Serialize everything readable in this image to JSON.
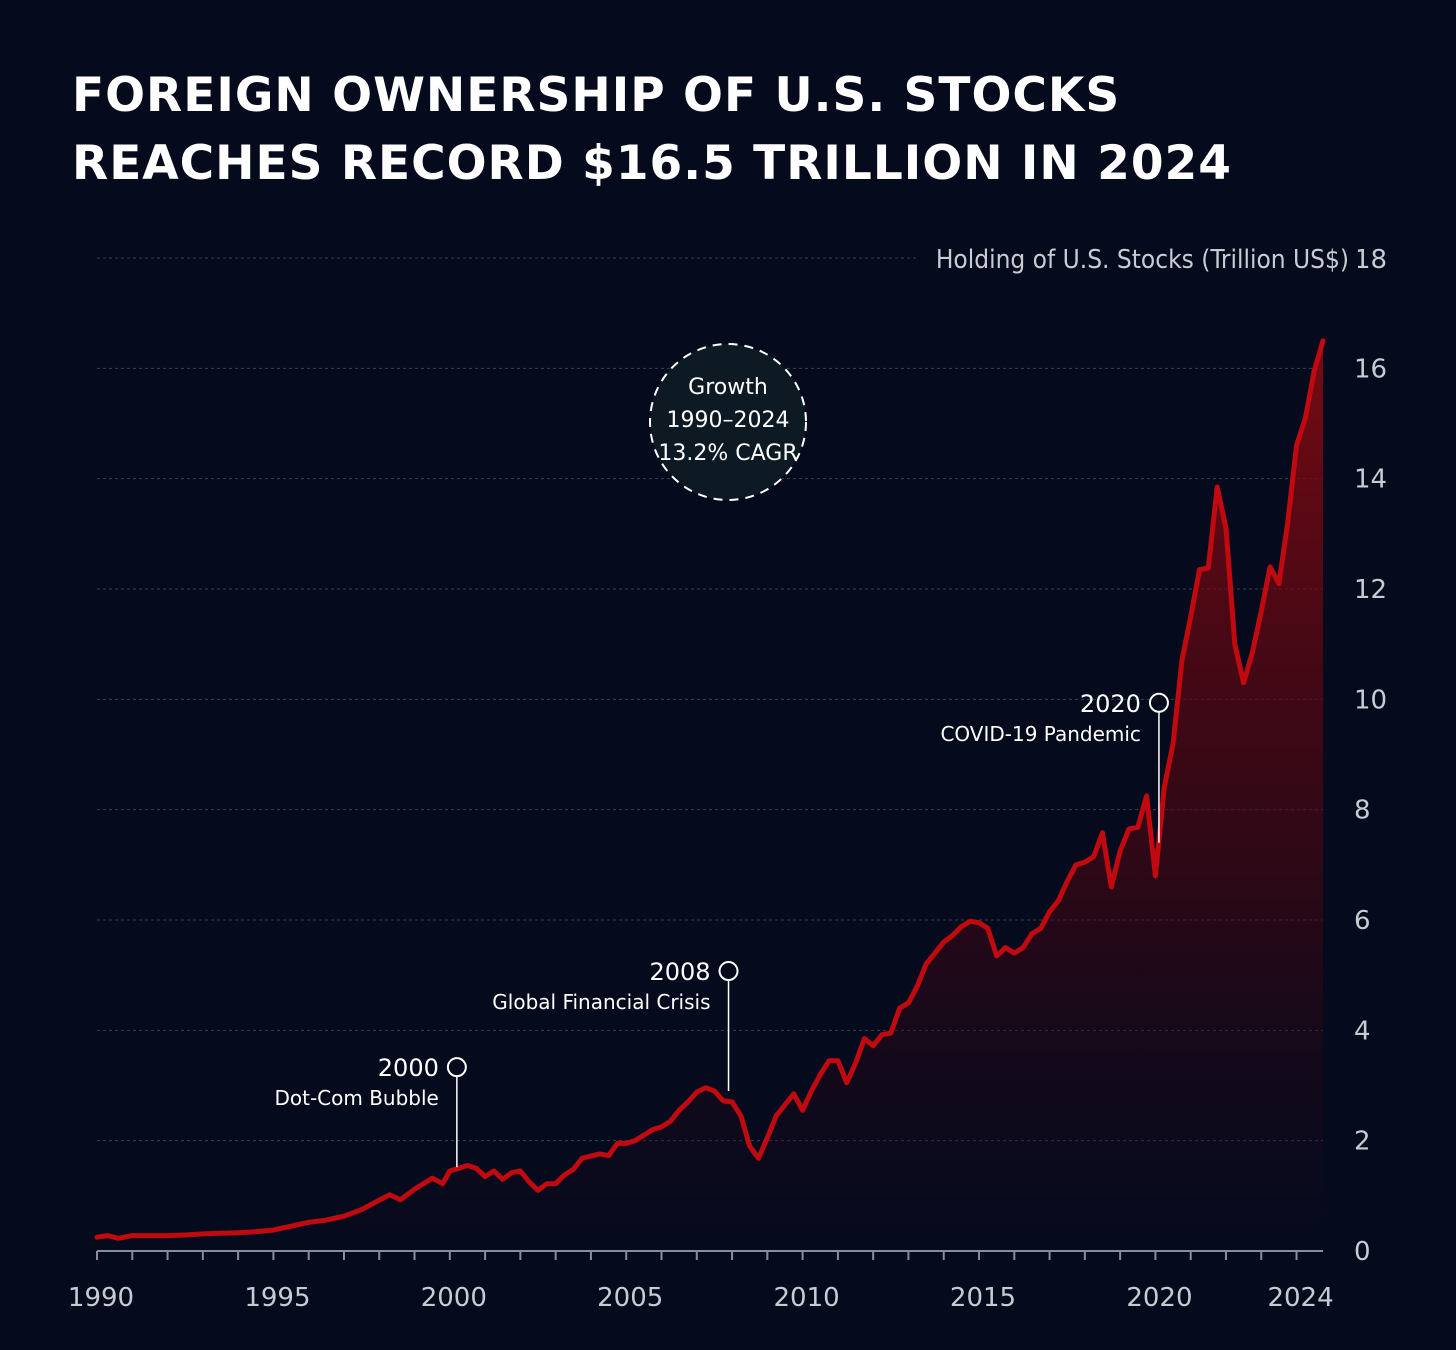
{
  "title_lines": [
    "FOREIGN OWNERSHIP OF U.S. STOCKS",
    "REACHES RECORD $16.5 TRILLION IN 2024"
  ],
  "colors": {
    "background": "#060a1d",
    "line": "#c00a0f",
    "grid": "#3a3f55",
    "text": "#ffffff",
    "axis_text": "#c9cbd3"
  },
  "badge": {
    "lines": [
      "Growth",
      "1990–2024",
      "13.2% CAGR"
    ]
  },
  "chart_data": {
    "type": "area",
    "ylabel": "Holding of U.S. Stocks (Trillion US$)",
    "xlim": [
      1990,
      2024.75
    ],
    "ylim": [
      0,
      18
    ],
    "y_axis_position": "right",
    "grid": true,
    "x_ticks": [
      1990,
      1995,
      2000,
      2005,
      2010,
      2015,
      2020,
      2024
    ],
    "y_ticks": [
      0,
      2,
      4,
      6,
      8,
      10,
      12,
      14,
      16,
      18
    ],
    "series": [
      {
        "x": [
          1990,
          1990.3,
          1990.6,
          1991,
          1991.5,
          1992,
          1992.5,
          1993,
          1993.5,
          1994,
          1994.5,
          1995,
          1995.5,
          1996,
          1996.5,
          1997,
          1997.5,
          1998,
          1998.3,
          1998.6,
          1999,
          1999.5,
          1999.8,
          2000,
          2000.25,
          2000.5,
          2000.75,
          2001,
          2001.25,
          2001.5,
          2001.75,
          2002,
          2002.25,
          2002.5,
          2002.75,
          2003,
          2003.25,
          2003.5,
          2003.75,
          2004,
          2004.25,
          2004.5,
          2004.75,
          2005,
          2005.25,
          2005.5,
          2005.75,
          2006,
          2006.25,
          2006.5,
          2006.75,
          2007,
          2007.25,
          2007.5,
          2007.75,
          2008,
          2008.25,
          2008.5,
          2008.75,
          2009,
          2009.25,
          2009.5,
          2009.75,
          2010,
          2010.25,
          2010.5,
          2010.75,
          2011,
          2011.25,
          2011.5,
          2011.75,
          2012,
          2012.25,
          2012.5,
          2012.75,
          2013,
          2013.25,
          2013.5,
          2013.75,
          2014,
          2014.25,
          2014.5,
          2014.75,
          2015,
          2015.25,
          2015.5,
          2015.75,
          2016,
          2016.25,
          2016.5,
          2016.75,
          2017,
          2017.25,
          2017.5,
          2017.75,
          2018,
          2018.25,
          2018.5,
          2018.75,
          2019,
          2019.25,
          2019.5,
          2019.75,
          2020,
          2020.25,
          2020.5,
          2020.75,
          2021,
          2021.25,
          2021.5,
          2021.75,
          2022,
          2022.25,
          2022.5,
          2022.75,
          2023,
          2023.25,
          2023.5,
          2023.75,
          2024,
          2024.25,
          2024.5,
          2024.75
        ],
        "y": [
          0.25,
          0.28,
          0.23,
          0.28,
          0.28,
          0.28,
          0.29,
          0.31,
          0.32,
          0.33,
          0.35,
          0.38,
          0.45,
          0.52,
          0.56,
          0.63,
          0.75,
          0.92,
          1.02,
          0.93,
          1.12,
          1.32,
          1.22,
          1.45,
          1.5,
          1.55,
          1.5,
          1.35,
          1.45,
          1.3,
          1.42,
          1.45,
          1.25,
          1.1,
          1.22,
          1.22,
          1.38,
          1.48,
          1.68,
          1.72,
          1.76,
          1.73,
          1.95,
          1.95,
          2.0,
          2.1,
          2.2,
          2.25,
          2.35,
          2.55,
          2.7,
          2.88,
          2.96,
          2.9,
          2.72,
          2.7,
          2.45,
          1.9,
          1.68,
          2.05,
          2.45,
          2.65,
          2.85,
          2.55,
          2.9,
          3.2,
          3.45,
          3.45,
          3.05,
          3.4,
          3.85,
          3.72,
          3.92,
          3.95,
          4.4,
          4.5,
          4.8,
          5.2,
          5.4,
          5.6,
          5.72,
          5.88,
          5.98,
          5.95,
          5.85,
          5.35,
          5.5,
          5.4,
          5.5,
          5.75,
          5.85,
          6.15,
          6.35,
          6.7,
          7.0,
          7.05,
          7.15,
          7.58,
          6.6,
          7.25,
          7.65,
          7.68,
          8.25,
          6.8,
          8.4,
          9.2,
          10.7,
          11.5,
          12.35,
          12.38,
          13.85,
          13.1,
          11.0,
          10.3,
          10.85,
          11.6,
          12.4,
          12.1,
          13.2,
          14.6,
          15.1,
          15.95,
          16.5
        ]
      }
    ],
    "annotations": [
      {
        "year": "2000",
        "label": "Dot-Com Bubble",
        "x": 2000.2,
        "y": 1.52
      },
      {
        "year": "2008",
        "label": "Global Financial Crisis",
        "x": 2007.9,
        "y": 2.9
      },
      {
        "year": "2020",
        "label": "COVID-19 Pandemic",
        "x": 2020.1,
        "y": 7.4
      }
    ]
  }
}
